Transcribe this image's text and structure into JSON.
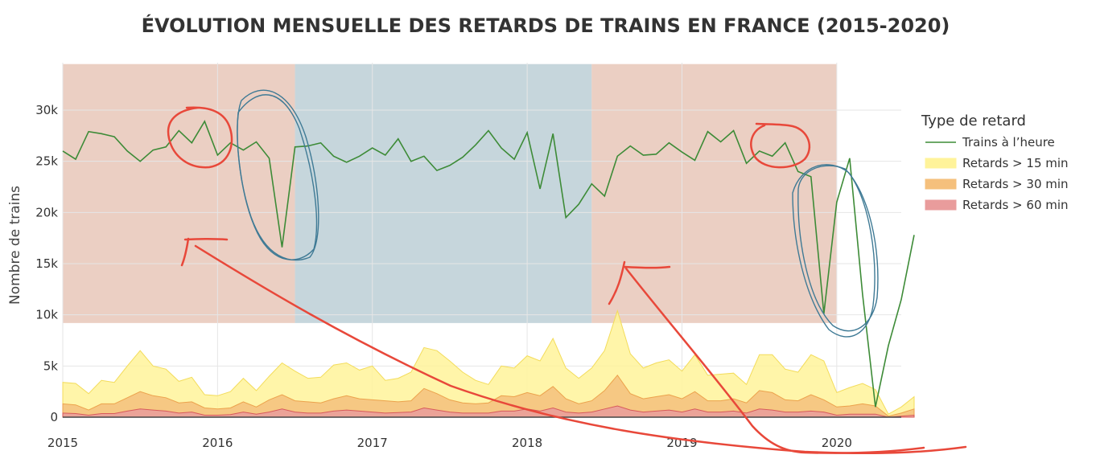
{
  "chart_data": {
    "type": "area+line",
    "title": "ÉVOLUTION MENSUELLE DES RETARDS DE TRAINS EN FRANCE (2015-2020)",
    "ylabel": "Nombre de trains",
    "xlabel": "",
    "x_range": [
      2015.0,
      2020.4167
    ],
    "y_range": [
      0,
      35000
    ],
    "x_ticks": [
      2015,
      2016,
      2017,
      2018,
      2019,
      2020
    ],
    "x_tick_labels": [
      "2015",
      "2016",
      "2017",
      "2018",
      "2019",
      "2020"
    ],
    "y_ticks": [
      0,
      5000,
      10000,
      15000,
      20000,
      25000,
      30000
    ],
    "y_tick_labels": [
      "0",
      "5k",
      "10k",
      "15k",
      "20k",
      "25k",
      "30k"
    ],
    "grid": true,
    "legend": {
      "title": "Type de retard",
      "placement": "right",
      "entries": [
        {
          "label": "Trains à l’heure",
          "color": "#3d8b37",
          "kind": "line"
        },
        {
          "label": "Retards > 15 min",
          "color": "#fff39a",
          "kind": "area"
        },
        {
          "label": "Retards > 30 min",
          "color": "#f5c07c",
          "kind": "area"
        },
        {
          "label": "Retards > 60 min",
          "color": "#e99c9c",
          "kind": "area"
        }
      ]
    },
    "shaded_periods": [
      {
        "x_start": 2015.0,
        "x_end": 2016.5,
        "y_start": 9200,
        "y_end": 34500,
        "color": "#e2bba9"
      },
      {
        "x_start": 2016.5,
        "x_end": 2018.4167,
        "y_start": 9200,
        "y_end": 34500,
        "color": "#aec5cd"
      },
      {
        "x_start": 2018.4167,
        "x_end": 2020.0,
        "y_start": 9200,
        "y_end": 34500,
        "color": "#e2bba9"
      }
    ],
    "x_start": 2015.0,
    "x_step_months": 1,
    "series": [
      {
        "name": "Trains à l’heure",
        "values": [
          26000,
          25200,
          27900,
          27700,
          27400,
          26000,
          25000,
          26100,
          26400,
          28000,
          26800,
          28900,
          25600,
          26800,
          26100,
          26900,
          25300,
          16600,
          26400,
          26500,
          26800,
          25500,
          24900,
          25500,
          26300,
          25600,
          27200,
          25000,
          25500,
          24100,
          24600,
          25400,
          26600,
          28000,
          26300,
          25200,
          27800,
          22300,
          27700,
          19500,
          20800,
          22800,
          21600,
          25500,
          26500,
          25600,
          25700,
          26800,
          25900,
          25100,
          27900,
          26900,
          28000,
          24800,
          26000,
          25500,
          26800,
          24000,
          23500,
          10100,
          21000,
          25300,
          12000,
          1000,
          7000,
          11500,
          17800
        ],
        "color": "#3d8b37"
      },
      {
        "name": "Retards > 15 min",
        "values": [
          3400,
          3300,
          2300,
          3600,
          3400,
          5000,
          6500,
          5000,
          4700,
          3500,
          3900,
          2200,
          2100,
          2500,
          3800,
          2600,
          4000,
          5300,
          4500,
          3800,
          3900,
          5100,
          5300,
          4600,
          5000,
          3600,
          3800,
          4400,
          6800,
          6500,
          5500,
          4400,
          3600,
          3200,
          5000,
          4800,
          6000,
          5500,
          7700,
          4800,
          3800,
          4800,
          6500,
          10400,
          6200,
          4800,
          5300,
          5600,
          4500,
          6100,
          4100,
          4200,
          4300,
          3200,
          6100,
          6100,
          4700,
          4400,
          6100,
          5500,
          2400,
          2900,
          3300,
          2700,
          300,
          1000,
          2000
        ]
      },
      {
        "name": "Retards > 30 min",
        "values": [
          1300,
          1200,
          700,
          1300,
          1300,
          1900,
          2500,
          2100,
          1900,
          1400,
          1500,
          900,
          800,
          900,
          1500,
          1000,
          1700,
          2200,
          1600,
          1500,
          1400,
          1800,
          2100,
          1800,
          1700,
          1600,
          1500,
          1600,
          2800,
          2300,
          1700,
          1400,
          1300,
          1400,
          2100,
          2000,
          2400,
          2100,
          3000,
          1800,
          1300,
          1600,
          2600,
          4100,
          2300,
          1800,
          2000,
          2200,
          1800,
          2500,
          1600,
          1600,
          1800,
          1400,
          2600,
          2400,
          1700,
          1600,
          2200,
          1700,
          1000,
          1100,
          1300,
          1100,
          100,
          400,
          800
        ]
      },
      {
        "name": "Retards > 60 min",
        "values": [
          400,
          350,
          200,
          350,
          350,
          600,
          800,
          700,
          600,
          400,
          500,
          200,
          200,
          250,
          500,
          300,
          500,
          800,
          500,
          400,
          400,
          600,
          700,
          600,
          500,
          400,
          450,
          500,
          900,
          700,
          500,
          400,
          400,
          400,
          600,
          600,
          800,
          600,
          900,
          500,
          400,
          500,
          800,
          1100,
          700,
          500,
          600,
          700,
          500,
          800,
          500,
          500,
          600,
          400,
          800,
          700,
          500,
          500,
          600,
          500,
          200,
          300,
          300,
          300,
          0,
          100,
          200
        ]
      }
    ]
  },
  "annotations": {
    "note": "hand-drawn red/blue markup strokes over the chart"
  }
}
